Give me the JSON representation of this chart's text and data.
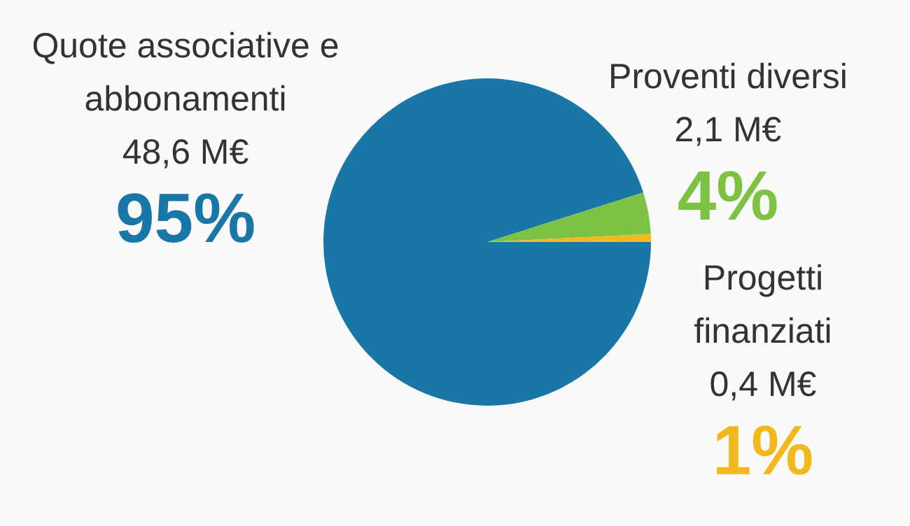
{
  "chart_data": {
    "type": "pie",
    "categories": [
      "Quote associative e abbonamenti",
      "Proventi diversi",
      "Progetti finanziati"
    ],
    "values": [
      48.6,
      2.1,
      0.4
    ],
    "value_labels": [
      "48,6 M€",
      "2,1 M€",
      "0,4 M€"
    ],
    "colors": [
      "#1877a6",
      "#7dc242",
      "#f3b81c"
    ],
    "annotations": [
      "95%",
      "4%",
      "1%"
    ],
    "legend": false
  }
}
